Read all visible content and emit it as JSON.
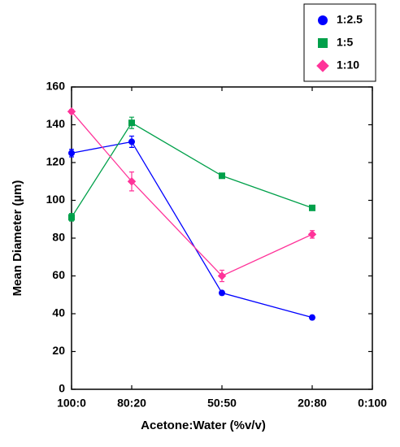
{
  "chart_data": {
    "type": "line",
    "x_label": "Acetone:Water (%v/v)",
    "y_label": "Mean Diameter (µm)",
    "x": [
      100,
      80,
      50,
      20
    ],
    "xlim": [
      100,
      0
    ],
    "xticks": [
      {
        "value": 100,
        "label": "100:0"
      },
      {
        "value": 80,
        "label": "80:20"
      },
      {
        "value": 50,
        "label": "50:50"
      },
      {
        "value": 20,
        "label": "20:80"
      },
      {
        "value": 0,
        "label": "0:100"
      }
    ],
    "ylim": [
      0,
      160
    ],
    "yticks": [
      0,
      20,
      40,
      60,
      80,
      100,
      120,
      140,
      160
    ],
    "legend": "top-right",
    "series": [
      {
        "name": "1:2.5",
        "color": "#0000ff",
        "marker": "circle",
        "values": [
          125,
          131,
          51,
          38
        ],
        "errors": [
          2,
          3,
          1,
          1
        ]
      },
      {
        "name": "1:5",
        "color": "#00a04a",
        "marker": "square",
        "values": [
          91,
          141,
          113,
          96
        ],
        "errors": [
          2,
          3,
          1,
          1
        ]
      },
      {
        "name": "1:10",
        "color": "#ff3399",
        "marker": "diamond",
        "values": [
          147,
          110,
          60,
          82
        ],
        "errors": [
          1,
          5,
          3,
          2
        ]
      }
    ]
  }
}
